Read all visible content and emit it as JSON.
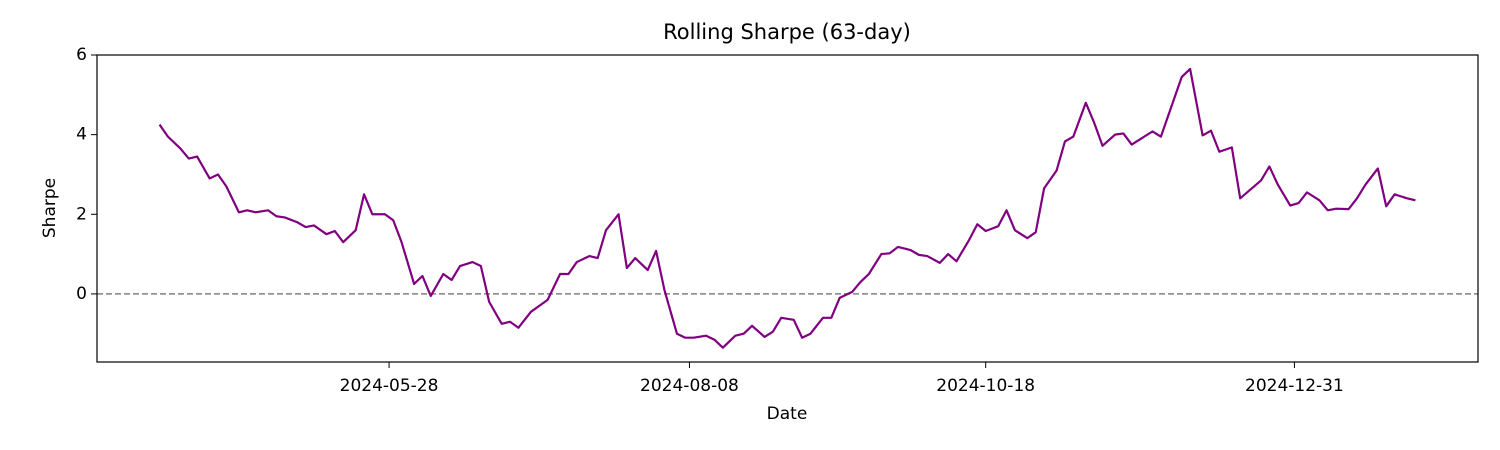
{
  "chart_data": {
    "type": "line",
    "title": "Rolling Sharpe (63-day)",
    "x_label": "Date",
    "y_label": "Sharpe",
    "x": [
      "2024-04-03",
      "2024-04-05",
      "2024-04-08",
      "2024-04-10",
      "2024-04-12",
      "2024-04-15",
      "2024-04-17",
      "2024-04-19",
      "2024-04-22",
      "2024-04-24",
      "2024-04-26",
      "2024-04-29",
      "2024-05-01",
      "2024-05-03",
      "2024-05-06",
      "2024-05-08",
      "2024-05-10",
      "2024-05-13",
      "2024-05-15",
      "2024-05-17",
      "2024-05-20",
      "2024-05-22",
      "2024-05-24",
      "2024-05-27",
      "2024-05-29",
      "2024-05-31",
      "2024-06-03",
      "2024-06-05",
      "2024-06-07",
      "2024-06-10",
      "2024-06-12",
      "2024-06-14",
      "2024-06-17",
      "2024-06-19",
      "2024-06-21",
      "2024-06-24",
      "2024-06-26",
      "2024-06-28",
      "2024-07-01",
      "2024-07-03",
      "2024-07-05",
      "2024-07-08",
      "2024-07-10",
      "2024-07-12",
      "2024-07-15",
      "2024-07-17",
      "2024-07-19",
      "2024-07-22",
      "2024-07-24",
      "2024-07-26",
      "2024-07-29",
      "2024-07-31",
      "2024-08-02",
      "2024-08-05",
      "2024-08-07",
      "2024-08-09",
      "2024-08-12",
      "2024-08-14",
      "2024-08-16",
      "2024-08-19",
      "2024-08-21",
      "2024-08-23",
      "2024-08-26",
      "2024-08-28",
      "2024-08-30",
      "2024-09-02",
      "2024-09-04",
      "2024-09-06",
      "2024-09-09",
      "2024-09-11",
      "2024-09-13",
      "2024-09-16",
      "2024-09-18",
      "2024-09-20",
      "2024-09-23",
      "2024-09-25",
      "2024-09-27",
      "2024-09-30",
      "2024-10-02",
      "2024-10-04",
      "2024-10-07",
      "2024-10-09",
      "2024-10-11",
      "2024-10-14",
      "2024-10-16",
      "2024-10-18",
      "2024-10-21",
      "2024-10-23",
      "2024-10-25",
      "2024-10-28",
      "2024-10-30",
      "2024-11-01",
      "2024-11-04",
      "2024-11-06",
      "2024-11-08",
      "2024-11-11",
      "2024-11-13",
      "2024-11-15",
      "2024-11-18",
      "2024-11-20",
      "2024-11-22",
      "2024-11-25",
      "2024-11-27",
      "2024-11-29",
      "2024-12-02",
      "2024-12-04",
      "2024-12-06",
      "2024-12-09",
      "2024-12-11",
      "2024-12-13",
      "2024-12-16",
      "2024-12-18",
      "2024-12-20",
      "2024-12-23",
      "2024-12-25",
      "2024-12-27",
      "2024-12-30",
      "2025-01-01",
      "2025-01-03",
      "2025-01-06",
      "2025-01-08",
      "2025-01-10",
      "2025-01-13",
      "2025-01-15",
      "2025-01-17",
      "2025-01-20",
      "2025-01-22",
      "2025-01-24",
      "2025-01-27",
      "2025-01-29"
    ],
    "series": [
      {
        "name": "Rolling Sharpe",
        "color": "#800080",
        "values": [
          4.25,
          3.95,
          3.65,
          3.4,
          3.45,
          2.9,
          3.0,
          2.7,
          2.05,
          2.1,
          2.05,
          2.1,
          1.95,
          1.92,
          1.8,
          1.68,
          1.72,
          1.5,
          1.58,
          1.3,
          1.6,
          2.5,
          2.0,
          2.0,
          1.85,
          1.3,
          0.25,
          0.45,
          -0.05,
          0.5,
          0.35,
          0.7,
          0.8,
          0.7,
          -0.2,
          -0.75,
          -0.7,
          -0.85,
          -0.45,
          -0.3,
          -0.15,
          0.5,
          0.5,
          0.8,
          0.95,
          0.9,
          1.6,
          2.0,
          0.65,
          0.9,
          0.6,
          1.08,
          0.1,
          -1.0,
          -1.1,
          -1.1,
          -1.05,
          -1.15,
          -1.35,
          -1.05,
          -1.0,
          -0.8,
          -1.08,
          -0.95,
          -0.6,
          -0.65,
          -1.1,
          -1.0,
          -0.6,
          -0.6,
          -0.1,
          0.05,
          0.3,
          0.5,
          1.0,
          1.02,
          1.18,
          1.1,
          0.98,
          0.95,
          0.78,
          1.0,
          0.82,
          1.35,
          1.75,
          1.58,
          1.7,
          2.1,
          1.6,
          1.4,
          1.55,
          2.65,
          3.1,
          3.83,
          3.95,
          4.8,
          4.3,
          3.72,
          4.0,
          4.03,
          3.75,
          3.95,
          4.08,
          3.95,
          4.85,
          5.45,
          5.65,
          3.98,
          4.1,
          3.57,
          3.68,
          2.4,
          2.58,
          2.85,
          3.2,
          2.75,
          2.22,
          2.28,
          2.55,
          2.35,
          2.1,
          2.14,
          2.13,
          2.4,
          2.74,
          3.15,
          2.2,
          2.5,
          2.4,
          2.35
        ]
      }
    ],
    "xlim": [
      "2024-03-19",
      "2025-02-13"
    ],
    "xticks": [
      "2024-05-28",
      "2024-08-08",
      "2024-10-18",
      "2024-12-31"
    ],
    "ylim": [
      -1.71,
      6
    ],
    "yticks": [
      0,
      2,
      4,
      6
    ],
    "reference_line": {
      "y": 0,
      "color": "#808080",
      "style": "dashed"
    },
    "grid": false
  }
}
